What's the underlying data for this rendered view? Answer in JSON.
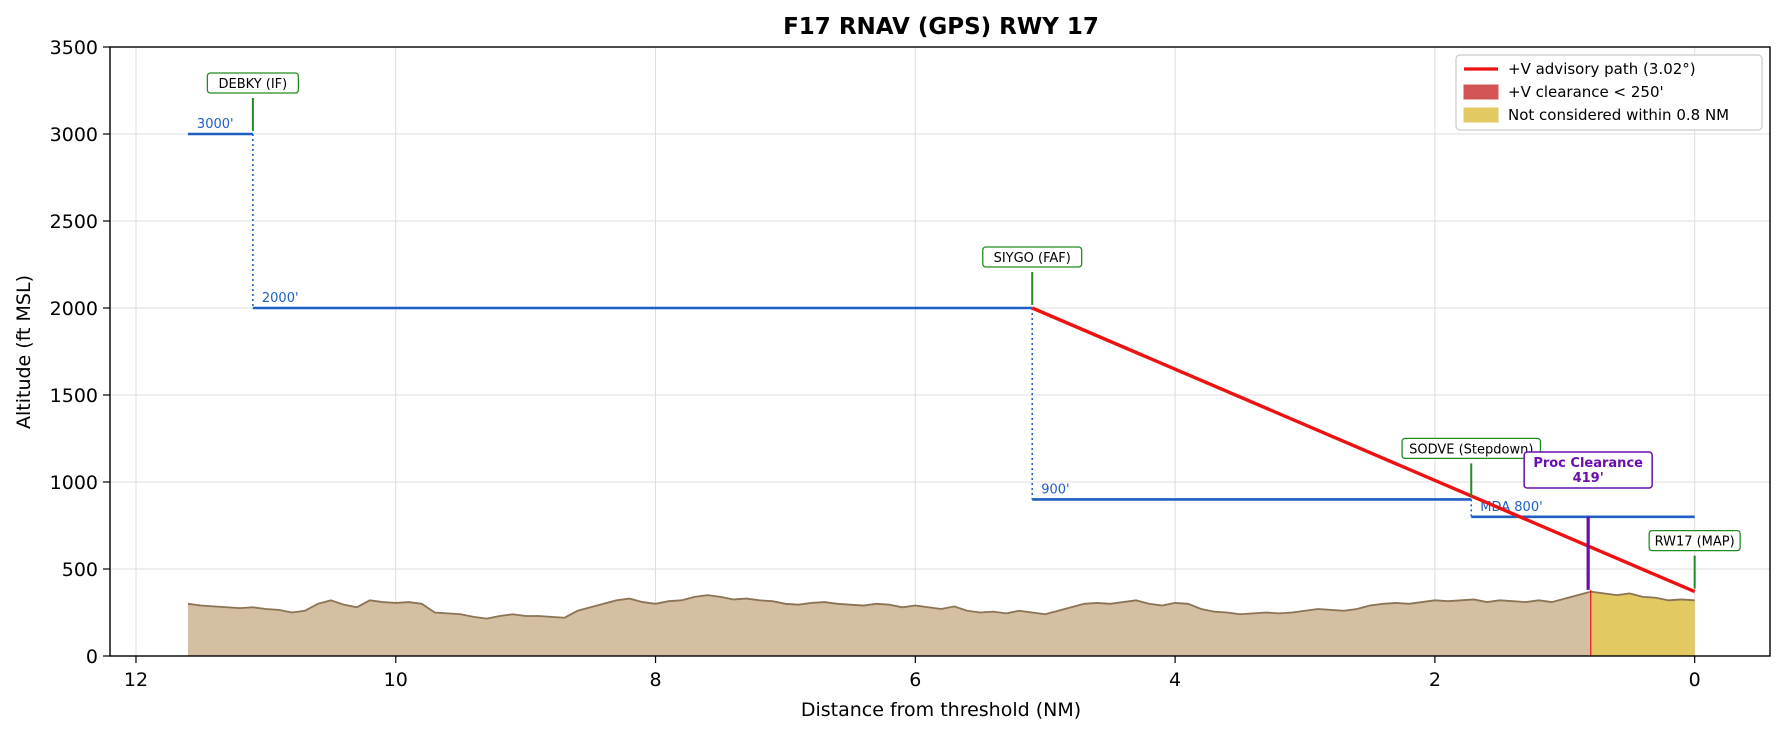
{
  "chart_data": {
    "type": "line",
    "title": "F17  RNAV (GPS) RWY 17",
    "xlabel": "Distance from threshold (NM)",
    "ylabel": "Altitude (ft MSL)",
    "xlim": [
      12.2,
      -0.58
    ],
    "ylim": [
      0,
      3500
    ],
    "x_ticks": [
      12,
      10,
      8,
      6,
      4,
      2,
      0
    ],
    "y_ticks": [
      0,
      500,
      1000,
      1500,
      2000,
      2500,
      3000,
      3500
    ],
    "grid": true,
    "legend_position": "top-right",
    "colors": {
      "segment": "#1f5fc4",
      "glidepath": "#ee1111",
      "terrain_fill": "#d4bfa3",
      "terrain_line": "#8b7355",
      "clearance_fill": "#d45555",
      "excluded_fill": "#e2c961",
      "fix_box": "#228b22",
      "proc_clearance": "#6a0dad"
    },
    "segments": [
      {
        "label": "3000'",
        "x_start": 11.6,
        "x_end": 11.1,
        "alt": 3000
      },
      {
        "label": "2000'",
        "x_start": 11.1,
        "x_end": 5.1,
        "alt": 2000
      },
      {
        "label": "900'",
        "x_start": 5.1,
        "x_end": 1.72,
        "alt": 900
      },
      {
        "label": "MDA 800'",
        "x_start": 1.72,
        "x_end": 0.0,
        "alt": 800
      }
    ],
    "step_drops": [
      {
        "x": 11.1,
        "from": 3000,
        "to": 2000
      },
      {
        "x": 5.1,
        "from": 2000,
        "to": 900
      },
      {
        "x": 1.72,
        "from": 900,
        "to": 800
      }
    ],
    "fixes": [
      {
        "label": "DEBKY (IF)",
        "x": 11.1,
        "alt": 3000
      },
      {
        "label": "SIYGO (FAF)",
        "x": 5.1,
        "alt": 2000
      },
      {
        "label": "SODVE (Stepdown)",
        "x": 1.72,
        "alt": 900
      },
      {
        "label": "RW17 (MAP)",
        "x": 0.0,
        "alt": 370
      }
    ],
    "glidepath": {
      "name": "+V advisory path (3.02°)",
      "x": [
        5.1,
        0.0
      ],
      "y": [
        2000,
        370
      ]
    },
    "clearance": {
      "title": "Proc Clearance",
      "value": "419'",
      "x": 0.82,
      "low": 380,
      "high": 800
    },
    "terrain": {
      "x": [
        11.6,
        11.5,
        11.4,
        11.3,
        11.2,
        11.1,
        11.0,
        10.9,
        10.8,
        10.7,
        10.6,
        10.5,
        10.4,
        10.3,
        10.2,
        10.1,
        10.0,
        9.9,
        9.8,
        9.7,
        9.6,
        9.5,
        9.4,
        9.3,
        9.2,
        9.1,
        9.0,
        8.9,
        8.8,
        8.7,
        8.6,
        8.5,
        8.4,
        8.3,
        8.2,
        8.1,
        8.0,
        7.9,
        7.8,
        7.7,
        7.6,
        7.5,
        7.4,
        7.3,
        7.2,
        7.1,
        7.0,
        6.9,
        6.8,
        6.7,
        6.6,
        6.5,
        6.4,
        6.3,
        6.2,
        6.1,
        6.0,
        5.9,
        5.8,
        5.7,
        5.6,
        5.5,
        5.4,
        5.3,
        5.2,
        5.1,
        5.0,
        4.9,
        4.8,
        4.7,
        4.6,
        4.5,
        4.4,
        4.3,
        4.2,
        4.1,
        4.0,
        3.9,
        3.8,
        3.7,
        3.6,
        3.5,
        3.4,
        3.3,
        3.2,
        3.1,
        3.0,
        2.9,
        2.8,
        2.7,
        2.6,
        2.5,
        2.4,
        2.3,
        2.2,
        2.1,
        2.0,
        1.9,
        1.8,
        1.7,
        1.6,
        1.5,
        1.4,
        1.3,
        1.2,
        1.1,
        1.0,
        0.9,
        0.8,
        0.7,
        0.6,
        0.5,
        0.4,
        0.3,
        0.2,
        0.1,
        0.0
      ],
      "y": [
        300,
        290,
        285,
        280,
        275,
        280,
        270,
        265,
        250,
        260,
        300,
        320,
        295,
        280,
        320,
        310,
        305,
        310,
        300,
        250,
        245,
        240,
        225,
        215,
        230,
        240,
        230,
        230,
        225,
        220,
        260,
        280,
        300,
        320,
        330,
        310,
        300,
        315,
        320,
        340,
        350,
        340,
        325,
        330,
        320,
        315,
        300,
        295,
        305,
        310,
        300,
        295,
        290,
        300,
        295,
        280,
        290,
        280,
        270,
        285,
        260,
        250,
        255,
        245,
        260,
        250,
        240,
        260,
        280,
        300,
        305,
        300,
        310,
        320,
        300,
        290,
        305,
        300,
        270,
        255,
        250,
        240,
        245,
        250,
        245,
        250,
        260,
        270,
        265,
        260,
        270,
        290,
        300,
        305,
        300,
        310,
        320,
        315,
        320,
        325,
        310,
        320,
        315,
        310,
        320,
        310,
        330,
        350,
        370,
        360,
        350,
        360,
        340,
        335,
        320,
        325,
        320
      ]
    },
    "excluded_zone": {
      "x_start": 0.8,
      "x_end": 0.0
    },
    "legend": [
      {
        "label": "+V advisory path (3.02°)",
        "kind": "line"
      },
      {
        "label": "+V clearance < 250'",
        "kind": "patch-red"
      },
      {
        "label": "Not considered within 0.8 NM",
        "kind": "patch-yellow"
      }
    ]
  }
}
